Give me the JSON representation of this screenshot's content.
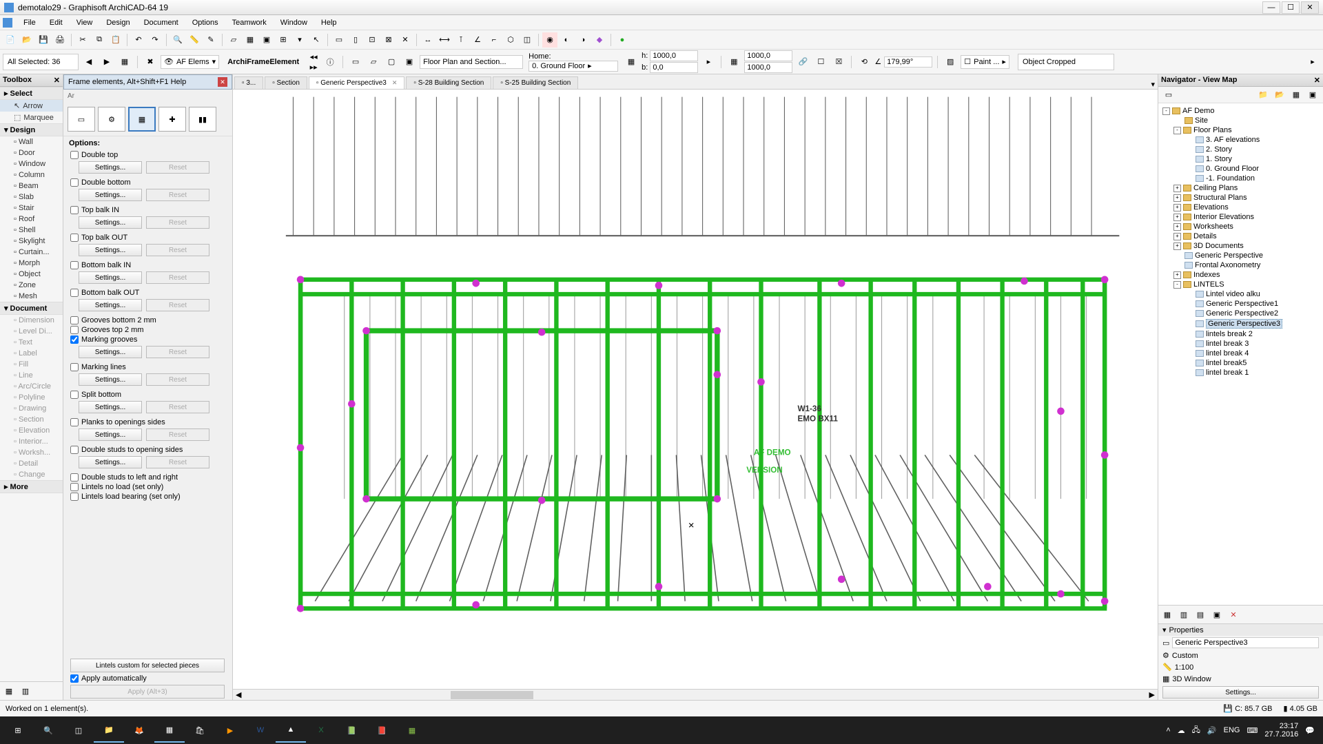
{
  "app": {
    "title": "demotalo29 - Graphisoft ArchiCAD-64 19"
  },
  "menu": [
    "File",
    "Edit",
    "View",
    "Design",
    "Document",
    "Options",
    "Teamwork",
    "Window",
    "Help"
  ],
  "info": {
    "selection": "All Selected: 36",
    "afelems": "AF Elems",
    "elemtype": "ArchiFrameElement",
    "dropdown": "Floor Plan and Section...",
    "home_label": "Home:",
    "home_value": "0. Ground Floor",
    "h_label": "h:",
    "h_value": "1000,0",
    "b_label": "b:",
    "b_value": "0,0",
    "dim1": "1000,0",
    "dim2": "1000,0",
    "angle_icon": "∠",
    "angle": "179,99°",
    "paint": "Paint ...",
    "cropped": "Object Cropped"
  },
  "toolbox": {
    "title": "Toolbox",
    "select_cat": "Select",
    "arrow": "Arrow",
    "marquee": "Marquee",
    "design_cat": "Design",
    "design_items": [
      "Wall",
      "Door",
      "Window",
      "Column",
      "Beam",
      "Slab",
      "Stair",
      "Roof",
      "Shell",
      "Skylight",
      "Curtain...",
      "Morph",
      "Object",
      "Zone",
      "Mesh"
    ],
    "document_cat": "Document",
    "doc_items": [
      "Dimension",
      "Level Di...",
      "Text",
      "Label",
      "Fill",
      "Line",
      "Arc/Circle",
      "Polyline",
      "Drawing",
      "Section",
      "Elevation",
      "Interior...",
      "Worksh...",
      "Detail",
      "Change"
    ],
    "more": "More"
  },
  "frame": {
    "title": "Frame elements, Alt+Shift+F1 Help",
    "options": "Options:",
    "opts": [
      {
        "label": "Double top",
        "checked": false,
        "btns": true
      },
      {
        "label": "Double bottom",
        "checked": false,
        "btns": true
      },
      {
        "label": "Top balk IN",
        "checked": false,
        "btns": true
      },
      {
        "label": "Top balk OUT",
        "checked": false,
        "btns": true
      },
      {
        "label": "Bottom balk IN",
        "checked": false,
        "btns": true
      },
      {
        "label": "Bottom balk OUT",
        "checked": false,
        "btns": true
      },
      {
        "label": "Grooves bottom 2 mm",
        "checked": false,
        "btns": false
      },
      {
        "label": "Grooves top 2 mm",
        "checked": false,
        "btns": false
      },
      {
        "label": "Marking grooves",
        "checked": true,
        "btns": true
      },
      {
        "label": "Marking lines",
        "checked": false,
        "btns": true
      },
      {
        "label": "Split bottom",
        "checked": false,
        "btns": true
      },
      {
        "label": "Planks to openings sides",
        "checked": false,
        "btns": true
      },
      {
        "label": "Double studs to opening sides",
        "checked": false,
        "btns": true
      },
      {
        "label": "Double studs to left and right",
        "checked": false,
        "btns": false
      },
      {
        "label": "Lintels no load (set only)",
        "checked": false,
        "btns": false
      },
      {
        "label": "Lintels load bearing (set only)",
        "checked": false,
        "btns": false
      }
    ],
    "settings_btn": "Settings...",
    "reset_btn": "Reset",
    "lintels_custom": "Lintels custom for selected pieces",
    "apply_auto": "Apply automatically",
    "apply_btn": "Apply (Alt+3)"
  },
  "tabs": [
    {
      "label": "3...",
      "active": false
    },
    {
      "label": "Section",
      "active": false
    },
    {
      "label": "Generic Perspective3",
      "active": true,
      "close": true
    },
    {
      "label": "S-28 Building Section",
      "active": false
    },
    {
      "label": "S-25 Building Section",
      "active": false
    }
  ],
  "canvas": {
    "frame_color": "#1fb81f",
    "node_color": "#d030d0",
    "line_color": "#606060",
    "bg": "#ffffff",
    "label1": "W1-36",
    "label2": "EMO BX11",
    "stamp": "AF DEMO"
  },
  "navigator": {
    "title": "Navigator - View Map",
    "tree": [
      {
        "d": 0,
        "exp": "-",
        "icon": "f",
        "label": "AF Demo"
      },
      {
        "d": 1,
        "exp": "",
        "icon": "f",
        "label": "Site"
      },
      {
        "d": 1,
        "exp": "-",
        "icon": "f",
        "label": "Floor Plans"
      },
      {
        "d": 2,
        "exp": "",
        "icon": "d",
        "label": "3. AF elevations"
      },
      {
        "d": 2,
        "exp": "",
        "icon": "d",
        "label": "2. Story"
      },
      {
        "d": 2,
        "exp": "",
        "icon": "d",
        "label": "1. Story"
      },
      {
        "d": 2,
        "exp": "",
        "icon": "d",
        "label": "0. Ground Floor"
      },
      {
        "d": 2,
        "exp": "",
        "icon": "d",
        "label": "-1. Foundation"
      },
      {
        "d": 1,
        "exp": "+",
        "icon": "f",
        "label": "Ceiling Plans"
      },
      {
        "d": 1,
        "exp": "+",
        "icon": "f",
        "label": "Structural Plans"
      },
      {
        "d": 1,
        "exp": "+",
        "icon": "f",
        "label": "Elevations"
      },
      {
        "d": 1,
        "exp": "+",
        "icon": "f",
        "label": "Interior Elevations"
      },
      {
        "d": 1,
        "exp": "+",
        "icon": "f",
        "label": "Worksheets"
      },
      {
        "d": 1,
        "exp": "+",
        "icon": "f",
        "label": "Details"
      },
      {
        "d": 1,
        "exp": "+",
        "icon": "f",
        "label": "3D Documents"
      },
      {
        "d": 1,
        "exp": "",
        "icon": "d",
        "label": "Generic Perspective"
      },
      {
        "d": 1,
        "exp": "",
        "icon": "d",
        "label": "Frontal Axonometry"
      },
      {
        "d": 1,
        "exp": "+",
        "icon": "f",
        "label": "Indexes"
      },
      {
        "d": 1,
        "exp": "-",
        "icon": "f",
        "label": "LINTELS"
      },
      {
        "d": 2,
        "exp": "",
        "icon": "d",
        "label": "Lintel video alku"
      },
      {
        "d": 2,
        "exp": "",
        "icon": "d",
        "label": "Generic Perspective1"
      },
      {
        "d": 2,
        "exp": "",
        "icon": "d",
        "label": "Generic Perspective2"
      },
      {
        "d": 2,
        "exp": "",
        "icon": "d",
        "label": "Generic Perspective3",
        "sel": true
      },
      {
        "d": 2,
        "exp": "",
        "icon": "d",
        "label": "lintels break 2"
      },
      {
        "d": 2,
        "exp": "",
        "icon": "d",
        "label": "lintel break 3"
      },
      {
        "d": 2,
        "exp": "",
        "icon": "d",
        "label": "lintel break 4"
      },
      {
        "d": 2,
        "exp": "",
        "icon": "d",
        "label": "lintel break5"
      },
      {
        "d": 2,
        "exp": "",
        "icon": "d",
        "label": "lintel break 1"
      }
    ],
    "properties": "Properties",
    "prop_name": "Generic Perspective3",
    "prop_custom": "Custom",
    "prop_scale": "1:100",
    "prop_window": "3D Window",
    "settings": "Settings..."
  },
  "status": {
    "left": "Worked on 1 element(s).",
    "disk_c": "C: 85.7 GB",
    "mem": "4.05 GB"
  },
  "taskbar": {
    "lang": "ENG",
    "time": "23:17",
    "date": "27.7.2016"
  }
}
